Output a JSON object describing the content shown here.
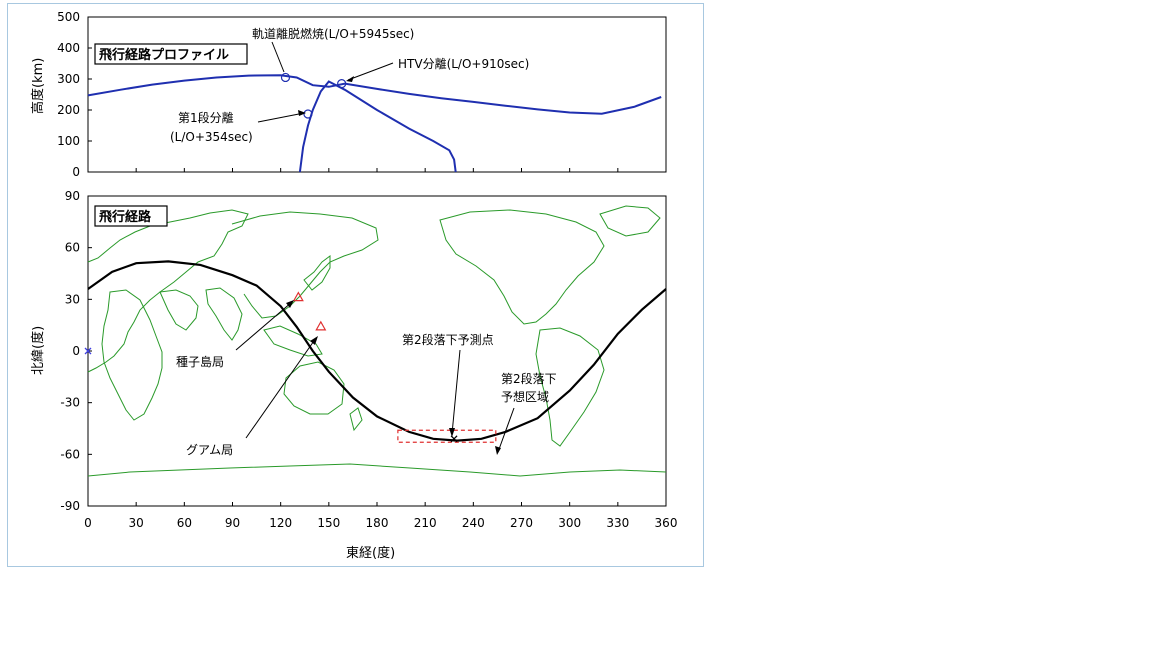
{
  "chart_data": [
    {
      "type": "line",
      "panel_label": "飛行経路プロファイル",
      "ylabel": "高度(km)",
      "ylim": [
        0,
        500
      ],
      "xlim": [
        0,
        360
      ],
      "yticks": [
        0,
        100,
        200,
        300,
        400,
        500
      ],
      "series": [
        {
          "color": "#1f2fb0",
          "x": [
            0,
            20,
            40,
            60,
            80,
            100,
            120,
            130,
            140,
            150,
            160,
            180,
            200,
            220,
            240,
            260,
            280,
            300,
            320,
            340,
            357
          ],
          "y": [
            247,
            265,
            282,
            295,
            305,
            311,
            312,
            305,
            280,
            275,
            285,
            268,
            252,
            238,
            226,
            214,
            202,
            192,
            188,
            210,
            242
          ]
        },
        {
          "color": "#1f2fb0",
          "x": [
            132,
            134,
            137,
            140,
            145,
            150,
            160,
            180,
            200,
            215,
            225,
            228,
            229
          ],
          "y": [
            0,
            80,
            150,
            200,
            260,
            292,
            265,
            200,
            140,
            100,
            70,
            40,
            0
          ]
        }
      ],
      "markers": [
        {
          "x": 123,
          "y": 305
        },
        {
          "x": 158,
          "y": 285
        },
        {
          "x": 137,
          "y": 187
        }
      ],
      "annotations": [
        {
          "text": "軌道離脱燃焼(L/O+5945sec)"
        },
        {
          "text": "HTV分離(L/O+910sec)"
        },
        {
          "text": "第1段分離"
        },
        {
          "text": "(L/O+354sec)"
        }
      ]
    },
    {
      "type": "line",
      "panel_label": "飛行経路",
      "xlabel": "東経(度)",
      "ylabel": "北緯(度)",
      "xlim": [
        0,
        360
      ],
      "ylim": [
        -90,
        90
      ],
      "xticks": [
        0,
        30,
        60,
        90,
        120,
        150,
        180,
        210,
        240,
        270,
        300,
        330,
        360
      ],
      "yticks": [
        -90,
        -60,
        -30,
        0,
        30,
        60,
        90
      ],
      "ground_track": {
        "color": "#000000",
        "x": [
          0,
          15,
          30,
          50,
          70,
          90,
          105,
          120,
          130,
          140,
          150,
          165,
          180,
          200,
          215,
          230,
          245,
          260,
          280,
          300,
          315,
          330,
          345,
          360
        ],
        "y": [
          36,
          46,
          51,
          52,
          50,
          44,
          38,
          26,
          14,
          0,
          -12,
          -27,
          -38,
          -47,
          -51,
          -52,
          -51,
          -47,
          -39,
          -23,
          -8,
          10,
          24,
          36
        ]
      },
      "stations": [
        {
          "name": "種子島局",
          "x": 131,
          "y": 31,
          "color": "#e03030"
        },
        {
          "name": "グアム局",
          "x": 145,
          "y": 14,
          "color": "#e03030"
        }
      ],
      "impact_point": {
        "label": "第2段落下予測点",
        "x": 228,
        "y": -51
      },
      "impact_area": {
        "label_line1": "第2段落下",
        "label_line2": "予想区域",
        "x": [
          193,
          254
        ],
        "y": [
          -46,
          -53
        ],
        "color": "#e03030"
      },
      "extra_marker": {
        "x": 0,
        "y": 0,
        "color": "#4040e0"
      }
    }
  ]
}
